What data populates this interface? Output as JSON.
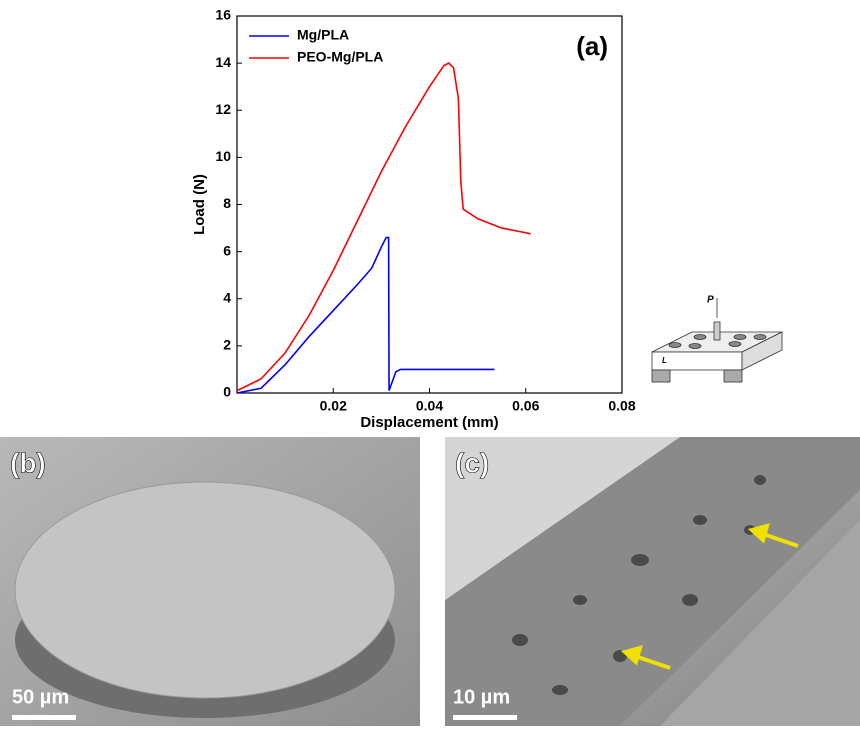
{
  "chart_data": {
    "type": "line",
    "x_label": "Displacement (mm)",
    "y_label": "Load (N)",
    "annotation": "(a)",
    "xlim": [
      0,
      0.08
    ],
    "ylim": [
      0,
      16
    ],
    "xticks": [
      0.02,
      0.04,
      0.06,
      0.08
    ],
    "yticks": [
      0,
      2,
      4,
      6,
      8,
      10,
      12,
      14,
      16
    ],
    "legend": "upper left",
    "series": [
      {
        "name": "Mg/PLA",
        "color": "#0000ff",
        "x": [
          0,
          0.005,
          0.01,
          0.015,
          0.02,
          0.025,
          0.028,
          0.03,
          0.031,
          0.0315,
          0.0316,
          0.033,
          0.034,
          0.045,
          0.0535
        ],
        "values": [
          0,
          0.2,
          1.2,
          2.4,
          3.5,
          4.6,
          5.3,
          6.2,
          6.6,
          6.6,
          0.1,
          0.9,
          1.0,
          1.0,
          1.0
        ]
      },
      {
        "name": "PEO-Mg/PLA",
        "color": "#ff0000",
        "x": [
          0,
          0.005,
          0.01,
          0.015,
          0.02,
          0.025,
          0.03,
          0.035,
          0.04,
          0.043,
          0.044,
          0.045,
          0.046,
          0.0465,
          0.047,
          0.05,
          0.055,
          0.06,
          0.061
        ],
        "values": [
          0.1,
          0.6,
          1.7,
          3.3,
          5.2,
          7.3,
          9.4,
          11.3,
          13.0,
          13.9,
          14.0,
          13.8,
          12.5,
          9.0,
          7.8,
          7.4,
          7.0,
          6.8,
          6.75
        ]
      }
    ]
  },
  "inset": {
    "force": "P",
    "thickness": "L"
  },
  "panels": [
    {
      "label": "(b)",
      "scale_bar": "50 µm"
    },
    {
      "label": "(c)",
      "scale_bar": "10 µm"
    }
  ]
}
